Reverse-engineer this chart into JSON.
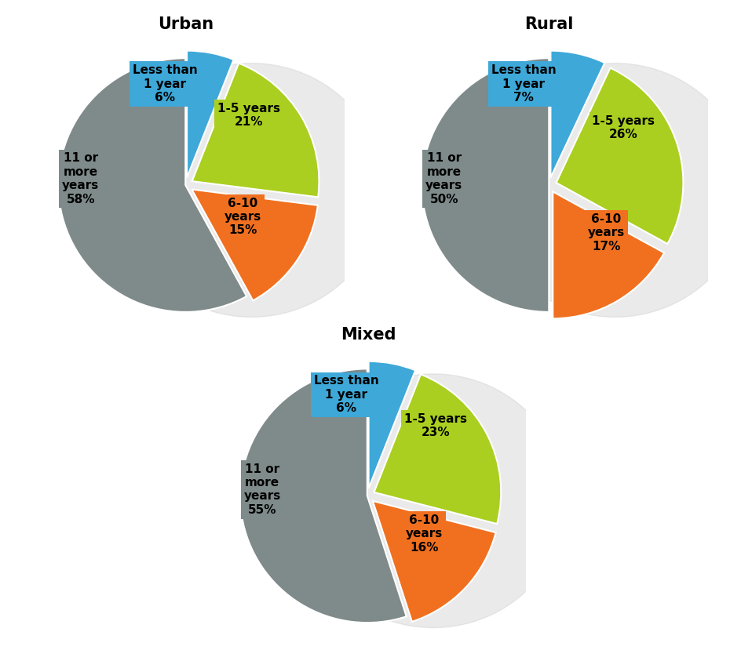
{
  "urban": {
    "title": "Urban",
    "values": [
      6,
      21,
      15,
      58
    ],
    "pct_labels": [
      "Less than\n1 year\n6%",
      "1-5 years\n21%",
      "6-10\nyears\n15%",
      "11 or\nmore\nyears\n58%"
    ]
  },
  "rural": {
    "title": "Rural",
    "values": [
      7,
      26,
      17,
      50
    ],
    "pct_labels": [
      "Less than\n1 year\n7%",
      "1-5 years\n26%",
      "6-10\nyears\n17%",
      "11 or\nmore\nyears\n50%"
    ]
  },
  "mixed": {
    "title": "Mixed",
    "values": [
      6,
      23,
      16,
      55
    ],
    "pct_labels": [
      "Less than\n1 year\n6%",
      "1-5 years\n23%",
      "6-10\nyears\n16%",
      "11 or\nmore\nyears\n55%"
    ]
  },
  "colors": [
    "#3ea8d8",
    "#aacf20",
    "#f07020",
    "#7f8a8a"
  ],
  "background": "#ffffff",
  "title_fontsize": 15,
  "label_fontsize": 11
}
